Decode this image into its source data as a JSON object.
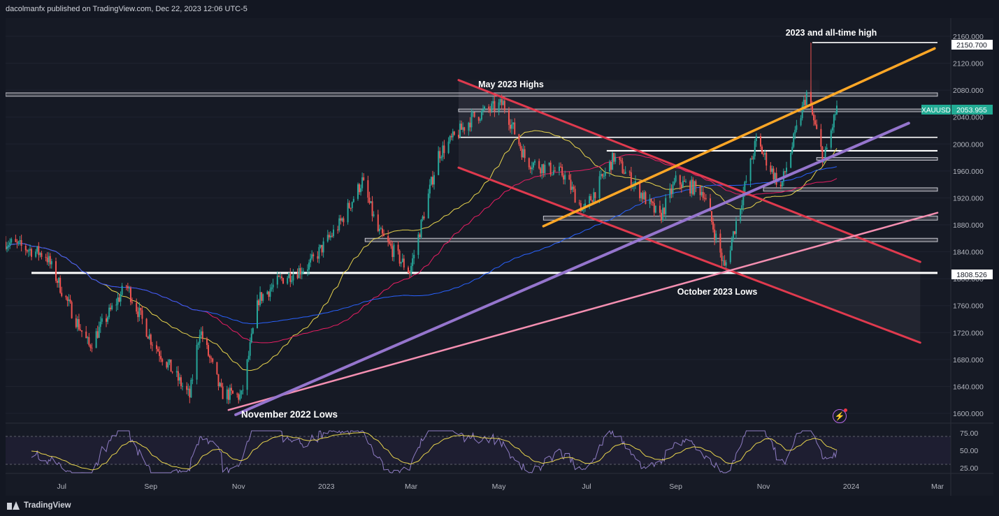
{
  "header": {
    "text": "dacolmanfx published on TradingView.com, Dec 22, 2023 12:06 UTC-5"
  },
  "footer": {
    "brand": "TradingView"
  },
  "annotations": {
    "high": "2023 and all-time high",
    "may": "May 2023 Highs",
    "nov": "November 2022 Lows",
    "oct": "October 2023 Lows"
  },
  "price_labels": {
    "high": "2150.700",
    "symbol": "XAUUSD",
    "last": "2053.955",
    "level": "1808.526"
  },
  "icons": {
    "bolt": "lightning-icon"
  },
  "colors": {
    "background": "#161a25",
    "grid": "#1f2330",
    "up": "#26a69a",
    "down": "#ef5350",
    "ma_fast": "#e8d44d",
    "ma_mid": "#e91e63",
    "ma_slow": "#2962ff",
    "trend_orange": "#ffa726",
    "trend_purple": "#9575cd",
    "trend_pink": "#f48fb1",
    "channel_red": "#e03a4e",
    "rsi": "#8e7cc3"
  },
  "chart_data": [
    {
      "type": "candlestick",
      "symbol": "XAUUSD",
      "y_axis_ticks": [
        "2160.000",
        "2120.000",
        "2080.000",
        "2040.000",
        "2000.000",
        "1960.000",
        "1920.000",
        "1880.000",
        "1840.000",
        "1800.000",
        "1760.000",
        "1720.000",
        "1680.000",
        "1640.000",
        "1600.000"
      ],
      "x_axis_ticks": [
        "Jul",
        "Sep",
        "Nov",
        "2023",
        "Mar",
        "May",
        "Jul",
        "Sep",
        "Nov",
        "2024",
        "Mar"
      ],
      "ylim": [
        1590,
        2170
      ],
      "last_price": 2053.955,
      "horizontal_levels": [
        2150.7,
        2075,
        2050,
        2010,
        1990,
        1978,
        1933,
        1890,
        1858,
        1808.526
      ],
      "price_path": [
        {
          "date": "2022-05-23",
          "price": 1855
        },
        {
          "date": "2022-06-20",
          "price": 1835
        },
        {
          "date": "2022-07-05",
          "price": 1765
        },
        {
          "date": "2022-07-20",
          "price": 1700
        },
        {
          "date": "2022-08-15",
          "price": 1790
        },
        {
          "date": "2022-09-01",
          "price": 1710
        },
        {
          "date": "2022-09-28",
          "price": 1625
        },
        {
          "date": "2022-10-05",
          "price": 1725
        },
        {
          "date": "2022-10-20",
          "price": 1630
        },
        {
          "date": "2022-11-03",
          "price": 1625
        },
        {
          "date": "2022-11-15",
          "price": 1770
        },
        {
          "date": "2022-12-01",
          "price": 1800
        },
        {
          "date": "2022-12-20",
          "price": 1820
        },
        {
          "date": "2023-01-10",
          "price": 1880
        },
        {
          "date": "2023-01-26",
          "price": 1945
        },
        {
          "date": "2023-02-06",
          "price": 1870
        },
        {
          "date": "2023-02-28",
          "price": 1810
        },
        {
          "date": "2023-03-20",
          "price": 1985
        },
        {
          "date": "2023-04-13",
          "price": 2040
        },
        {
          "date": "2023-05-04",
          "price": 2060
        },
        {
          "date": "2023-05-20",
          "price": 1975
        },
        {
          "date": "2023-06-15",
          "price": 1955
        },
        {
          "date": "2023-06-29",
          "price": 1900
        },
        {
          "date": "2023-07-20",
          "price": 1980
        },
        {
          "date": "2023-08-21",
          "price": 1890
        },
        {
          "date": "2023-09-01",
          "price": 1945
        },
        {
          "date": "2023-09-20",
          "price": 1930
        },
        {
          "date": "2023-10-05",
          "price": 1815
        },
        {
          "date": "2023-10-27",
          "price": 2005
        },
        {
          "date": "2023-11-13",
          "price": 1935
        },
        {
          "date": "2023-12-01",
          "price": 2075
        },
        {
          "date": "2023-12-13",
          "price": 1975
        },
        {
          "date": "2023-12-22",
          "price": 2054
        }
      ]
    },
    {
      "type": "line",
      "name": "RSI",
      "y_axis_ticks": [
        "75.00",
        "50.00",
        "25.00"
      ],
      "ylim": [
        15,
        80
      ],
      "bands": [
        30,
        70
      ]
    }
  ]
}
